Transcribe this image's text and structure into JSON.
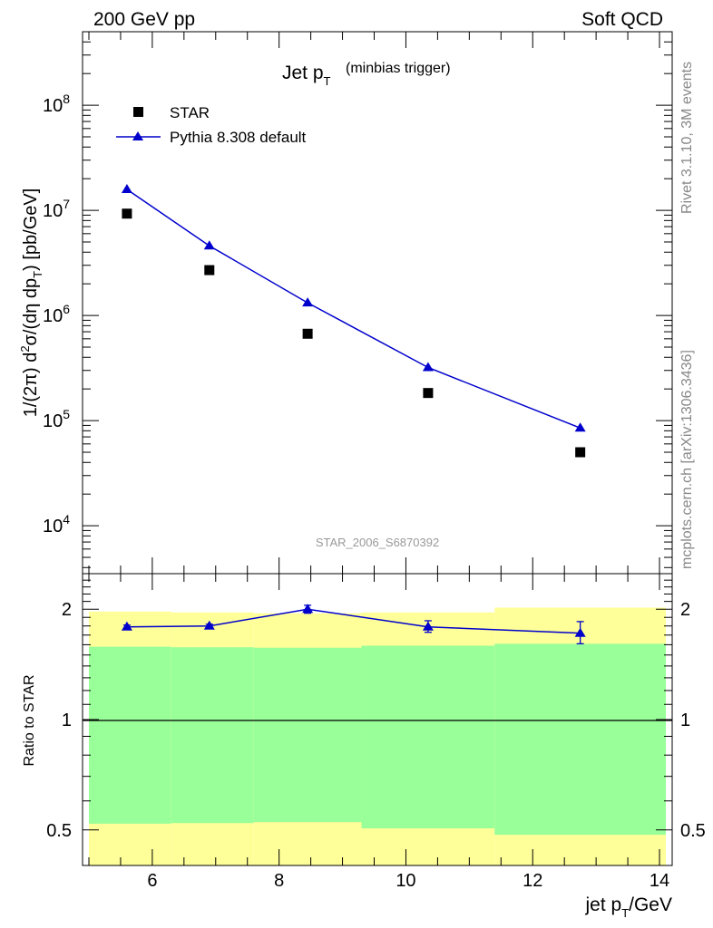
{
  "header": {
    "left": "200 GeV pp",
    "right": "Soft QCD"
  },
  "side_text": {
    "top": "Rivet 3.1.10,  3M events",
    "bottom": "mcplots.cern.ch [arXiv:1306.3436]"
  },
  "watermark": "STAR_2006_S6870392",
  "colors": {
    "mc": "#0000cc",
    "band_outer": "#ffff99",
    "band_inner": "#99ff99",
    "data": "#000000"
  },
  "chart_data": [
    {
      "type": "scatter",
      "title_main": "Jet p",
      "title_sub": "T",
      "title_note": "(minbias trigger)",
      "ylabel": "1/(2π) d²σ/(dη dp_T) [pb/GeV]",
      "yscale": "log",
      "ylim": [
        3500,
        500000000
      ],
      "xlim": [
        4.9,
        14.2
      ],
      "ytick_labels": [
        {
          "base": "10",
          "exp": "4",
          "value": 10000
        },
        {
          "base": "10",
          "exp": "5",
          "value": 100000
        },
        {
          "base": "10",
          "exp": "6",
          "value": 1000000
        },
        {
          "base": "10",
          "exp": "7",
          "value": 10000000
        },
        {
          "base": "10",
          "exp": "8",
          "value": 100000000
        }
      ],
      "legend": {
        "placement": "top-left",
        "entries": [
          {
            "label": "STAR",
            "marker": "square"
          },
          {
            "label": "Pythia 8.308 default",
            "marker": "triangle"
          }
        ]
      },
      "series": [
        {
          "name": "STAR",
          "x": [
            5.6,
            6.9,
            8.45,
            10.35,
            12.75
          ],
          "values": [
            9300000,
            2700000,
            670000,
            183000,
            50000
          ]
        },
        {
          "name": "Pythia 8.308 default",
          "x": [
            5.6,
            6.9,
            8.45,
            10.35,
            12.75
          ],
          "values": [
            15800000,
            4600000,
            1320000,
            320000,
            85000
          ]
        }
      ]
    },
    {
      "type": "line",
      "ylabel": "Ratio to STAR",
      "xlabel_main": "jet p",
      "xlabel_sub": "T",
      "xlabel_unit": "/GeV",
      "yscale": "log",
      "ylim": [
        0.4,
        2.5
      ],
      "xlim": [
        4.9,
        14.2
      ],
      "xticks": [
        6,
        8,
        10,
        12,
        14
      ],
      "xtick_labels": [
        "6",
        "8",
        "10",
        "12",
        "14"
      ],
      "ytick_labels": [
        {
          "label": "0.5",
          "value": 0.5
        },
        {
          "label": "1",
          "value": 1
        },
        {
          "label": "2",
          "value": 2
        }
      ],
      "reference_line": 1,
      "bands": {
        "bins": [
          {
            "xlo": 5.0,
            "xhi": 6.3,
            "outer": [
              0.3,
              1.97
            ],
            "inner": [
              0.52,
              1.58
            ]
          },
          {
            "xlo": 6.3,
            "xhi": 7.6,
            "outer": [
              0.3,
              1.96
            ],
            "inner": [
              0.522,
              1.575
            ]
          },
          {
            "xlo": 7.6,
            "xhi": 9.3,
            "outer": [
              0.3,
              1.95
            ],
            "inner": [
              0.525,
              1.57
            ]
          },
          {
            "xlo": 9.3,
            "xhi": 11.4,
            "outer": [
              0.3,
              1.96
            ],
            "inner": [
              0.505,
              1.59
            ]
          },
          {
            "xlo": 11.4,
            "xhi": 14.1,
            "outer": [
              0.3,
              2.02
            ],
            "inner": [
              0.485,
              1.61
            ]
          }
        ]
      },
      "series": [
        {
          "name": "Pythia 8.308 default",
          "x": [
            5.6,
            6.9,
            8.45,
            10.35,
            12.75
          ],
          "values": [
            1.79,
            1.8,
            2.0,
            1.79,
            1.72
          ],
          "err_lo": [
            0.02,
            0.02,
            0.05,
            0.06,
            0.11
          ],
          "err_hi": [
            0.02,
            0.02,
            0.05,
            0.07,
            0.13
          ]
        }
      ]
    }
  ]
}
